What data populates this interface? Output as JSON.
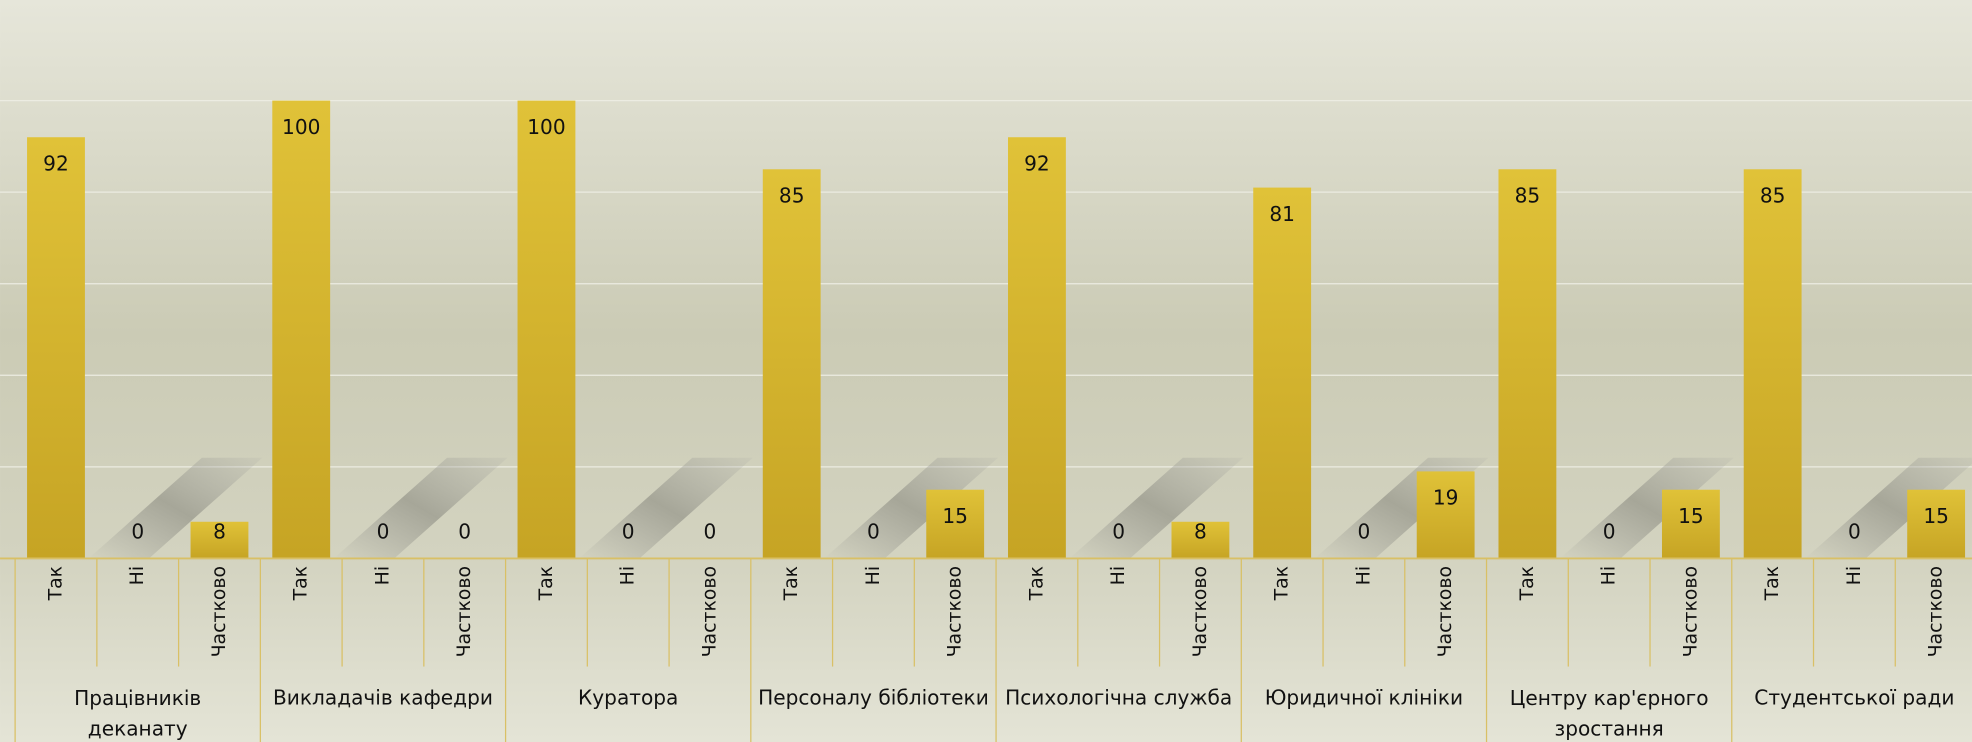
{
  "chart_data": {
    "type": "bar",
    "groups": [
      "Працівників деканату",
      "Викладачів кафедри",
      "Куратора",
      "Персоналу бібліотеки",
      "Психологічна служба",
      "Юридичної клініки",
      "Центру кар'єрного зростання",
      "Студентської ради"
    ],
    "categories": [
      "Так",
      "Ні",
      "Частково",
      "Так",
      "Ні",
      "Частково",
      "Так",
      "Ні",
      "Частково",
      "Так",
      "Ні",
      "Частково",
      "Так",
      "Ні",
      "Частково",
      "Так",
      "Ні",
      "Частково",
      "Так",
      "Ні",
      "Частково",
      "Так",
      "Ні",
      "Частково"
    ],
    "values": [
      92,
      0,
      8,
      100,
      0,
      0,
      100,
      0,
      0,
      85,
      0,
      15,
      92,
      0,
      8,
      81,
      0,
      19,
      85,
      0,
      15,
      85,
      0,
      15
    ],
    "color": "#d6b830",
    "ylim": [
      0,
      100
    ],
    "yticks": [
      0,
      20,
      40,
      60,
      80,
      100
    ],
    "grid": true
  }
}
